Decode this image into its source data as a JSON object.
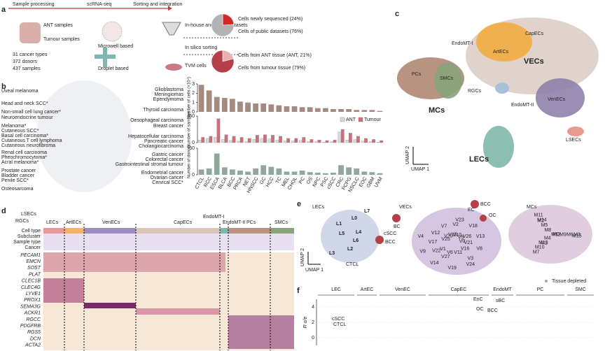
{
  "panel_letters": [
    "a",
    "b",
    "c",
    "d",
    "e",
    "f"
  ],
  "panel_a": {
    "steps": [
      "Sample processing",
      "scRNA-seq",
      "Sorting and integration"
    ],
    "samples": [
      "ANT samples",
      "Tumour samples"
    ],
    "stats": [
      "31 cancer types",
      "372 donors",
      "437 samples"
    ],
    "platforms": [
      "Microwell based",
      "Droplet based"
    ],
    "sorting": [
      "In-house and public datasets",
      "In silico sorting",
      "TVM cells"
    ]
  },
  "pies": [
    {
      "type": "pie",
      "labels": [
        "Cells newly sequenced (24%)",
        "Cells of public datasets (76%)"
      ],
      "values": [
        24,
        76
      ],
      "colors": [
        "#d7262b",
        "#b3b3b3"
      ]
    },
    {
      "type": "pie",
      "labels": [
        "Cells from ANT tissue (ANT, 21%)",
        "Cells from tumour tissue (79%)"
      ],
      "values": [
        21,
        79
      ],
      "colors": [
        "#eab0b0",
        "#b5404a"
      ]
    }
  ],
  "panel_b": {
    "cancers_left": [
      "Uveal melanoma",
      "Head and neck SCC*",
      "Non-small cell lung cancer*",
      "Neuroendocrine tumour",
      "Melanoma*",
      "Cutaneous SCC*",
      "Basal cell carcinoma*",
      "Cutaneous T cell lymphoma",
      "Cutaneous neurofibroma",
      "Renal cell carcinoma",
      "Pheochromocytoma*",
      "Acral melanoma*",
      "Prostate cancer",
      "Bladder cancer",
      "Penile SCC*",
      "Osteosarcoma"
    ],
    "cancers_mid": [
      "Glioblastoma",
      "Meningiomas",
      "Ependymoma",
      "Thyroid carcinoma",
      "Oesophageal carcinoma",
      "Breast cancer",
      "Hepatocellular carcinoma",
      "Pancreatic cancer",
      "Cholangiocarcinoma",
      "Gastric cancer",
      "Colorectal cancer",
      "Gastrointestinal stromal tumour",
      "Endometrial cancer",
      "Ovarian cancer",
      "Cervical SCC*"
    ]
  },
  "chart_data": [
    {
      "type": "bar",
      "ylabel": "Number of cells (×10⁴)",
      "color": "#a58a80",
      "values": [
        2.9,
        2.3,
        1.6,
        1.5,
        1.4,
        1.1,
        1.0,
        0.9,
        0.9,
        0.8,
        0.7,
        0.6,
        0.6,
        0.5,
        0.5,
        0.4,
        0.4,
        0.3,
        0.3,
        0.3,
        0.2,
        0.2,
        0.2,
        0.1
      ],
      "ylim": [
        0,
        3
      ],
      "yticks": [
        0,
        1,
        2,
        3
      ]
    },
    {
      "type": "grouped-bar",
      "ylabel": "Number of samples",
      "legend": "top-right",
      "series": [
        {
          "name": "ANT",
          "color": "#d9d9d9",
          "values": [
            5,
            8,
            10,
            6,
            4,
            3,
            2,
            6,
            8,
            7,
            5,
            3,
            3,
            4,
            2,
            2,
            1,
            2,
            20,
            5,
            6,
            3,
            2,
            1
          ]
        },
        {
          "name": "Tumour",
          "color": "#c9707a",
          "values": [
            10,
            12,
            45,
            15,
            12,
            10,
            8,
            14,
            15,
            14,
            12,
            8,
            8,
            10,
            6,
            5,
            4,
            5,
            25,
            18,
            12,
            8,
            6,
            4
          ]
        }
      ],
      "ylim": [
        0,
        50
      ],
      "yticks": [
        0,
        50
      ]
    },
    {
      "type": "bar",
      "ylabel": "Number of donors",
      "color": "#8fa89a",
      "categories": [
        "CTCL",
        "RCC",
        "ESCA",
        "BLCA",
        "BCC",
        "PRCA",
        "NET",
        "HNSCC",
        "GC",
        "HCC",
        "TC",
        "MEL",
        "CHOL",
        "PC",
        "OS",
        "NPC",
        "PSC",
        "cSCC",
        "CRC",
        "PCPG",
        "NSCLC",
        "EOC",
        "GBM",
        "UVM"
      ],
      "values": [
        10,
        12,
        40,
        14,
        10,
        8,
        6,
        12,
        18,
        15,
        12,
        6,
        6,
        8,
        5,
        4,
        3,
        4,
        18,
        14,
        12,
        6,
        5,
        3
      ],
      "ylim": [
        0,
        50
      ],
      "yticks": [
        0,
        50
      ]
    }
  ],
  "panel_c": {
    "labels": [
      "CapECs",
      "EndoMT-I",
      "ArtECs",
      "VECs",
      "PCs",
      "SMCs",
      "RGCs",
      "EndoMT-II",
      "VenECs",
      "MCs",
      "LECs",
      "LSECs"
    ],
    "axes": [
      "UMAP 2",
      "UMAP 1"
    ]
  },
  "panel_d": {
    "top_labels": [
      "LSECs",
      "RGCs",
      "LECs",
      "ArtECs",
      "VenECs",
      "CapECs",
      "EndoMT-I",
      "EndoMT-II",
      "PCs",
      "SMCs"
    ],
    "row_labels": [
      "Cell type",
      "Subcluster",
      "Sample type",
      "Cancer"
    ],
    "genes": [
      "PECAM1",
      "EMCN",
      "SOST",
      "PLAT",
      "CLEC1B",
      "CLEC4G",
      "LYVE1",
      "PROX1",
      "SEMA3G",
      "ACKR1",
      "RGCC",
      "PDGFRB",
      "RGS5",
      "DCN",
      "ACTA2"
    ]
  },
  "panel_e": {
    "groups": [
      "LECs",
      "VECs",
      "MCs"
    ],
    "lec_clusters": [
      "L0",
      "L1",
      "L2",
      "L3",
      "L4",
      "L5",
      "L6",
      "L7"
    ],
    "vec_clusters": [
      "V0",
      "V1",
      "V2",
      "V3",
      "V4",
      "V5",
      "V6",
      "V7",
      "V8",
      "V9",
      "V10",
      "V11",
      "V12",
      "V13",
      "V14",
      "V15",
      "V16",
      "V17",
      "V18",
      "V19",
      "V20",
      "V21",
      "V22",
      "V23",
      "V24",
      "V25",
      "V26",
      "V27"
    ],
    "mc_clusters": [
      "M0",
      "M1",
      "M2",
      "M3",
      "M4",
      "M5",
      "M6",
      "M7",
      "M8",
      "M9",
      "M10",
      "M11",
      "M12",
      "M13",
      "M14",
      "M15"
    ],
    "annotations": [
      "cSCC",
      "BCC",
      "CTCL",
      "BC",
      "EC",
      "OC",
      "BCC"
    ],
    "axes": [
      "UMAP 2",
      "UMAP 1"
    ]
  },
  "panel_f": {
    "groups": [
      "LEC",
      "ArtEC",
      "VenEC",
      "CapEC",
      "EndoMT",
      "PC",
      "SMC"
    ],
    "legend": "Tissue depleted",
    "ylabel": "R o/e",
    "ylim": [
      -1,
      5
    ],
    "yticks": [
      0,
      2,
      4
    ],
    "annotations": [
      "EnC",
      "sBC",
      "OC",
      "BCC",
      "cSCC",
      "CTCL"
    ]
  }
}
